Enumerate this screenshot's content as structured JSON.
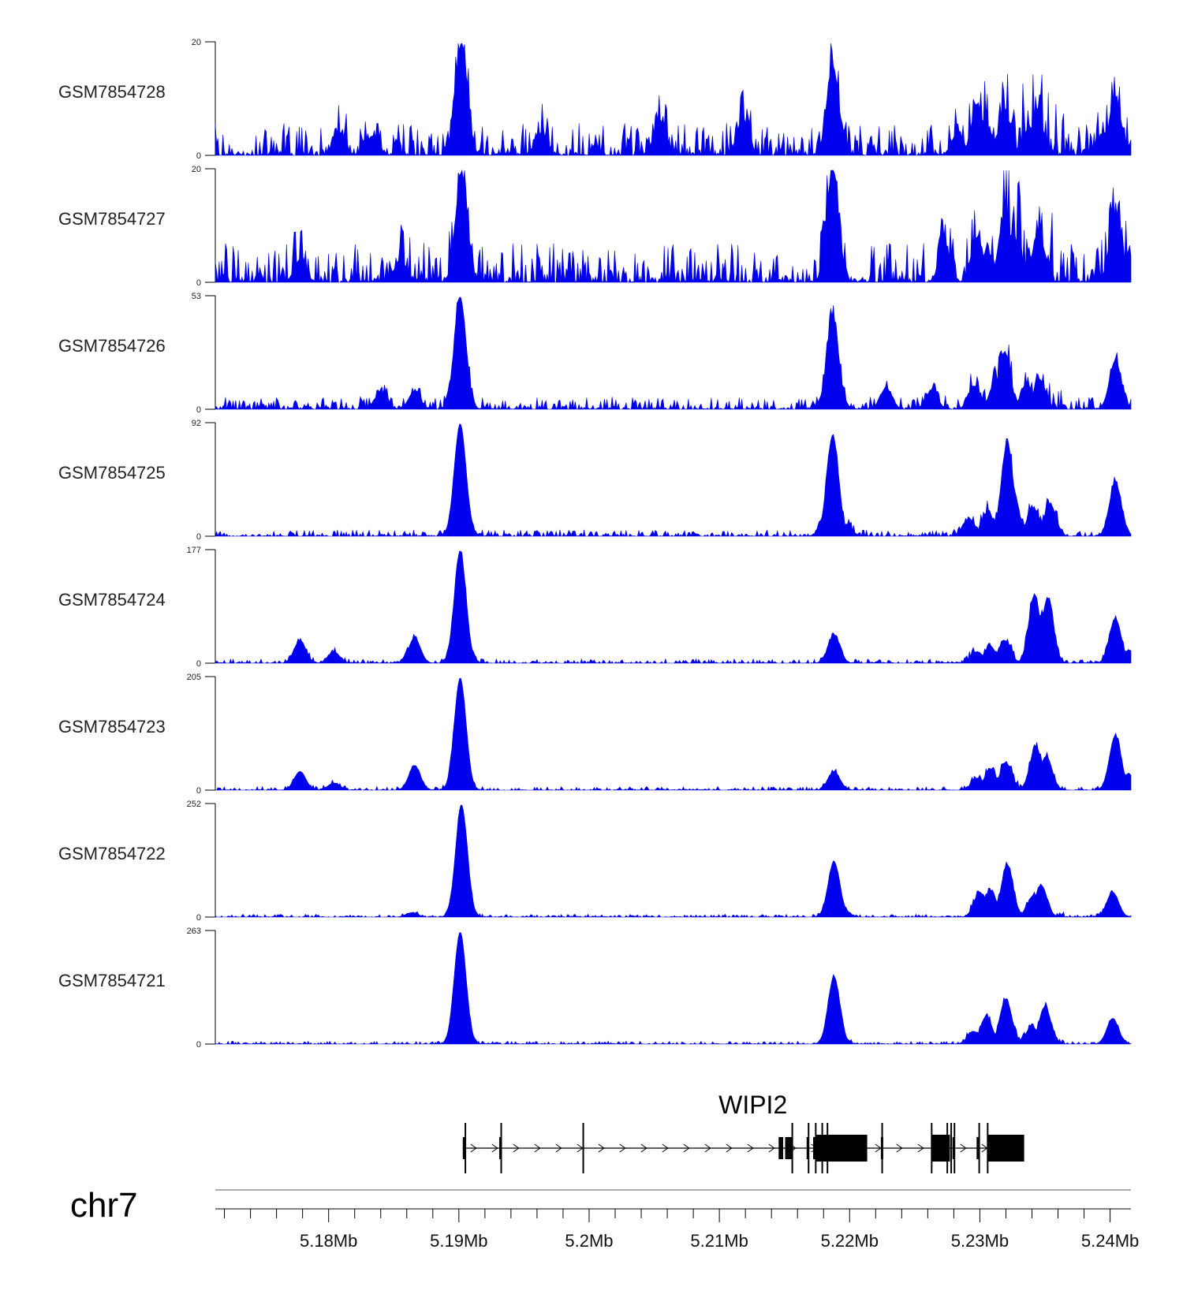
{
  "chart_data": {
    "type": "area",
    "chromosome": "chr7",
    "x_unit": "Mb",
    "xlim": [
      5.1713,
      5.2416
    ],
    "x_ticks_major": [
      5.18,
      5.19,
      5.2,
      5.21,
      5.22,
      5.23,
      5.24
    ],
    "x_tick_labels": [
      "5.18Mb",
      "5.19Mb",
      "5.2Mb",
      "5.21Mb",
      "5.22Mb",
      "5.23Mb",
      "5.24Mb"
    ],
    "x_minor_step": 0.002,
    "peak_width_mb": 0.00045,
    "color": "#0000ee",
    "tracks": [
      {
        "name": "GSM7854728",
        "ymax": 20,
        "ymax_label": "20",
        "ymin_label": "0",
        "noise": 0.09,
        "seed": 8,
        "peaks": [
          [
            5.1902,
            20
          ],
          [
            5.2187,
            16
          ],
          [
            5.2404,
            10
          ],
          [
            5.2319,
            8
          ],
          [
            5.2298,
            9
          ],
          [
            5.2344,
            7.5
          ],
          [
            5.2118,
            6.5
          ],
          [
            5.2054,
            6
          ],
          [
            5.2283,
            4
          ],
          [
            5.2305,
            5
          ],
          [
            5.1808,
            4
          ],
          [
            5.1834,
            3.5
          ],
          [
            5.2338,
            5
          ],
          [
            5.2395,
            4
          ],
          [
            5.1963,
            4
          ]
        ]
      },
      {
        "name": "GSM7854727",
        "ymax": 20,
        "ymax_label": "20",
        "ymin_label": "0",
        "noise": 0.11,
        "seed": 7,
        "peaks": [
          [
            5.1902,
            19
          ],
          [
            5.2187,
            20
          ],
          [
            5.2319,
            12
          ],
          [
            5.2345,
            9
          ],
          [
            5.2404,
            12
          ],
          [
            5.2298,
            8
          ],
          [
            5.2273,
            6
          ],
          [
            5.2328,
            7
          ],
          [
            5.2306,
            5
          ],
          [
            5.2414,
            5
          ],
          [
            5.1778,
            4
          ],
          [
            5.1855,
            4
          ]
        ]
      },
      {
        "name": "GSM7854726",
        "ymax": 53,
        "ymax_label": "53",
        "ymin_label": "0",
        "noise": 0.035,
        "seed": 6,
        "peaks": [
          [
            5.1901,
            53
          ],
          [
            5.2187,
            44
          ],
          [
            5.2319,
            27
          ],
          [
            5.2404,
            23
          ],
          [
            5.2346,
            14
          ],
          [
            5.2183,
            12
          ],
          [
            5.2228,
            10
          ],
          [
            5.2312,
            12
          ],
          [
            5.2296,
            11
          ],
          [
            5.1866,
            8
          ],
          [
            5.184,
            8
          ],
          [
            5.2263,
            9
          ],
          [
            5.2336,
            12
          ]
        ]
      },
      {
        "name": "GSM7854725",
        "ymax": 92,
        "ymax_label": "92",
        "ymin_label": "0",
        "noise": 0.018,
        "seed": 5,
        "peaks": [
          [
            5.1901,
            92
          ],
          [
            5.2187,
            83
          ],
          [
            5.2321,
            76
          ],
          [
            5.2404,
            44
          ],
          [
            5.2354,
            26
          ],
          [
            5.2341,
            23
          ],
          [
            5.2306,
            20
          ],
          [
            5.2292,
            14
          ],
          [
            5.2182,
            16
          ],
          [
            5.2325,
            40
          ],
          [
            5.2197,
            10
          ]
        ]
      },
      {
        "name": "GSM7854724",
        "ymax": 177,
        "ymax_label": "177",
        "ymin_label": "0",
        "noise": 0.012,
        "seed": 4,
        "peaks": [
          [
            5.1901,
            177
          ],
          [
            5.2342,
            106
          ],
          [
            5.2352,
            102
          ],
          [
            5.2404,
            70
          ],
          [
            5.2319,
            36
          ],
          [
            5.2308,
            26
          ],
          [
            5.1778,
            36
          ],
          [
            5.1866,
            40
          ],
          [
            5.2188,
            44
          ],
          [
            5.1804,
            18
          ],
          [
            5.2298,
            18
          ],
          [
            5.2414,
            20
          ],
          [
            5.2347,
            75
          ]
        ]
      },
      {
        "name": "GSM7854723",
        "ymax": 205,
        "ymax_label": "205",
        "ymin_label": "0",
        "noise": 0.01,
        "seed": 3,
        "peaks": [
          [
            5.1901,
            205
          ],
          [
            5.2404,
            100
          ],
          [
            5.2343,
            80
          ],
          [
            5.2351,
            62
          ],
          [
            5.232,
            50
          ],
          [
            5.2308,
            38
          ],
          [
            5.1866,
            44
          ],
          [
            5.1778,
            34
          ],
          [
            5.2188,
            34
          ],
          [
            5.1804,
            13
          ],
          [
            5.2298,
            22
          ],
          [
            5.2414,
            30
          ]
        ]
      },
      {
        "name": "GSM7854722",
        "ymax": 252,
        "ymax_label": "252",
        "ymin_label": "0",
        "noise": 0.008,
        "seed": 2,
        "peaks": [
          [
            5.1902,
            252
          ],
          [
            5.2188,
            125
          ],
          [
            5.2321,
            118
          ],
          [
            5.2347,
            72
          ],
          [
            5.23,
            56
          ],
          [
            5.2308,
            60
          ],
          [
            5.2402,
            56
          ],
          [
            5.2341,
            48
          ],
          [
            5.2193,
            30
          ],
          [
            5.1864,
            10
          ]
        ]
      },
      {
        "name": "GSM7854721",
        "ymax": 263,
        "ymax_label": "263",
        "ymin_label": "0",
        "noise": 0.008,
        "seed": 1,
        "peaks": [
          [
            5.1901,
            263
          ],
          [
            5.2188,
            158
          ],
          [
            5.232,
            106
          ],
          [
            5.2305,
            65
          ],
          [
            5.235,
            88
          ],
          [
            5.234,
            42
          ],
          [
            5.2402,
            60
          ],
          [
            5.2295,
            30
          ],
          [
            5.2193,
            25
          ]
        ]
      }
    ],
    "gene": {
      "name": "WIPI2",
      "strand": "+",
      "start": 5.1903,
      "end": 5.2334,
      "exons": [
        [
          5.1903,
          5.19055,
          "thin"
        ],
        [
          5.1931,
          5.19325,
          "thin"
        ],
        [
          5.2193,
          5.22135,
          "thick"
        ],
        [
          5.21455,
          5.2149,
          "thin"
        ],
        [
          5.21505,
          5.2156,
          "thin"
        ],
        [
          5.2167,
          5.21685,
          "thin"
        ],
        [
          5.2172,
          5.2174,
          "thin"
        ],
        [
          5.21735,
          5.2194,
          "thick"
        ],
        [
          5.2224,
          5.22255,
          "thin"
        ],
        [
          5.2263,
          5.2277,
          "thick"
        ],
        [
          5.2279,
          5.22805,
          "thin"
        ],
        [
          5.22975,
          5.22995,
          "thin"
        ],
        [
          5.23055,
          5.2334,
          "thick"
        ]
      ],
      "tall_marks": [
        5.1905,
        5.19325,
        5.19955,
        5.2156,
        5.21685,
        5.2174,
        5.2179,
        5.2183,
        5.2225,
        5.2263,
        5.2275,
        5.2278,
        5.22805,
        5.22995,
        5.2306
      ]
    }
  }
}
